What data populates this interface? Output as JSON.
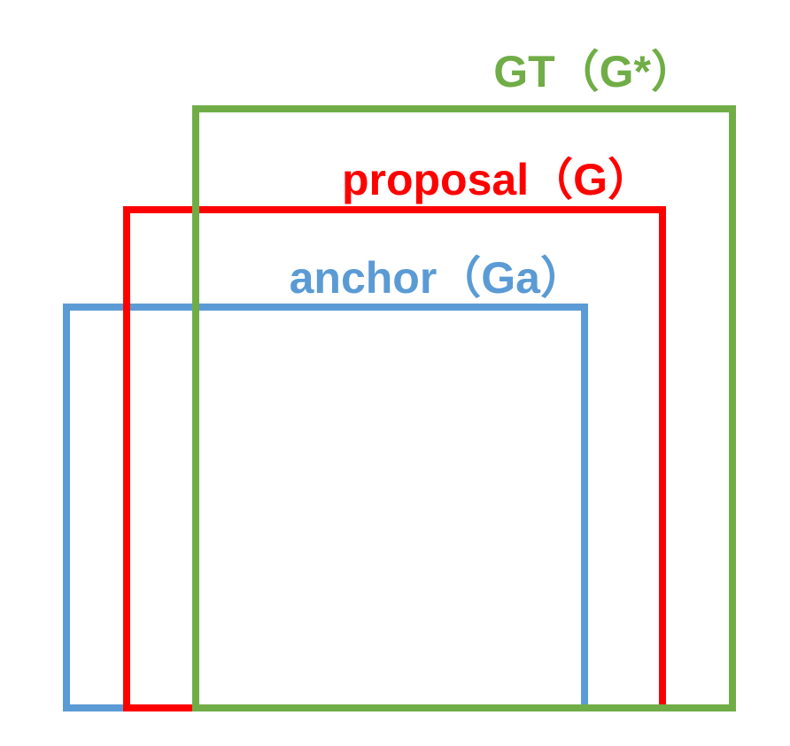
{
  "boxes": {
    "gt": {
      "label": "GT（G*）",
      "color": "#70AD47"
    },
    "proposal": {
      "label": "proposal（G）",
      "color": "#FF0000"
    },
    "anchor": {
      "label": "anchor（Ga）",
      "color": "#5B9BD5"
    }
  }
}
